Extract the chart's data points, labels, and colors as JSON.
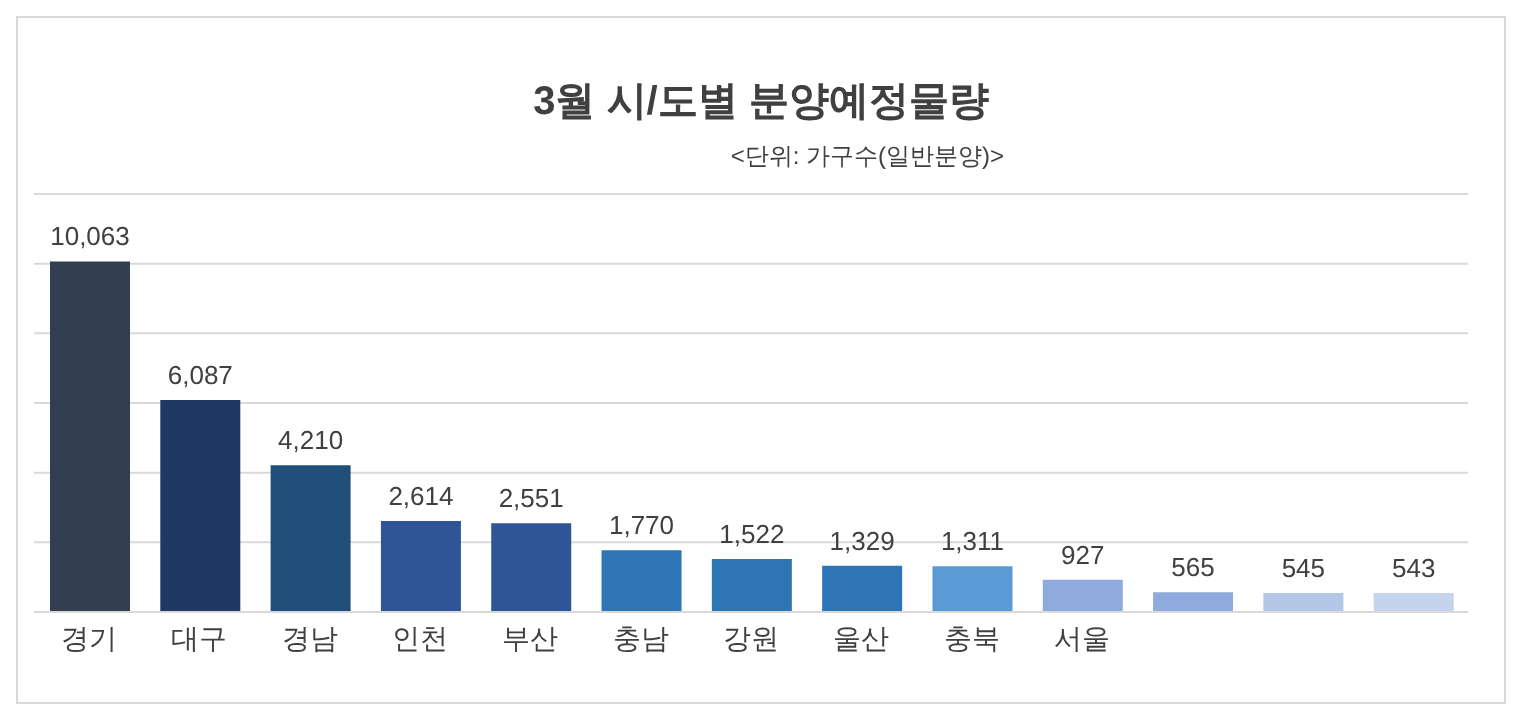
{
  "chart_data": {
    "type": "bar",
    "title": "3월 시/도별 분양예정물량",
    "subtitle": "<단위: 가구수(일반분양)>",
    "categories": [
      "경기",
      "대구",
      "경남",
      "인천",
      "부산",
      "충남",
      "강원",
      "울산",
      "충북",
      "서울",
      null,
      null,
      null
    ],
    "values": [
      10063,
      6087,
      4210,
      2614,
      2551,
      1770,
      1522,
      1329,
      1311,
      927,
      565,
      545,
      543
    ],
    "colors": [
      "#333f50",
      "#1f3864",
      "#1f4e79",
      "#2f5597",
      "#2f5597",
      "#2e75b6",
      "#2e75b6",
      "#2e75b6",
      "#5b9bd5",
      "#8faadc",
      "#8faadc",
      "#b4c7e7",
      "#c5d3ec"
    ],
    "ylim": [
      0,
      12000
    ],
    "yticks": [
      {
        "value": 0,
        "label": null
      },
      {
        "value": 2000,
        "label": null
      },
      {
        "value": 4000,
        "label": null
      },
      {
        "value": 6000,
        "label": null
      },
      {
        "value": 8000,
        "label": null
      },
      {
        "value": 10000,
        "label": null
      },
      {
        "value": 12000,
        "label": null
      }
    ],
    "value_labels": [
      "10,063",
      "6,087",
      "4,210",
      "2,614",
      "2,551",
      "1,770",
      "1,522",
      "1,329",
      "1,311",
      "927",
      "565",
      "545",
      "543"
    ],
    "grid": "y",
    "tick_labels": "x"
  }
}
